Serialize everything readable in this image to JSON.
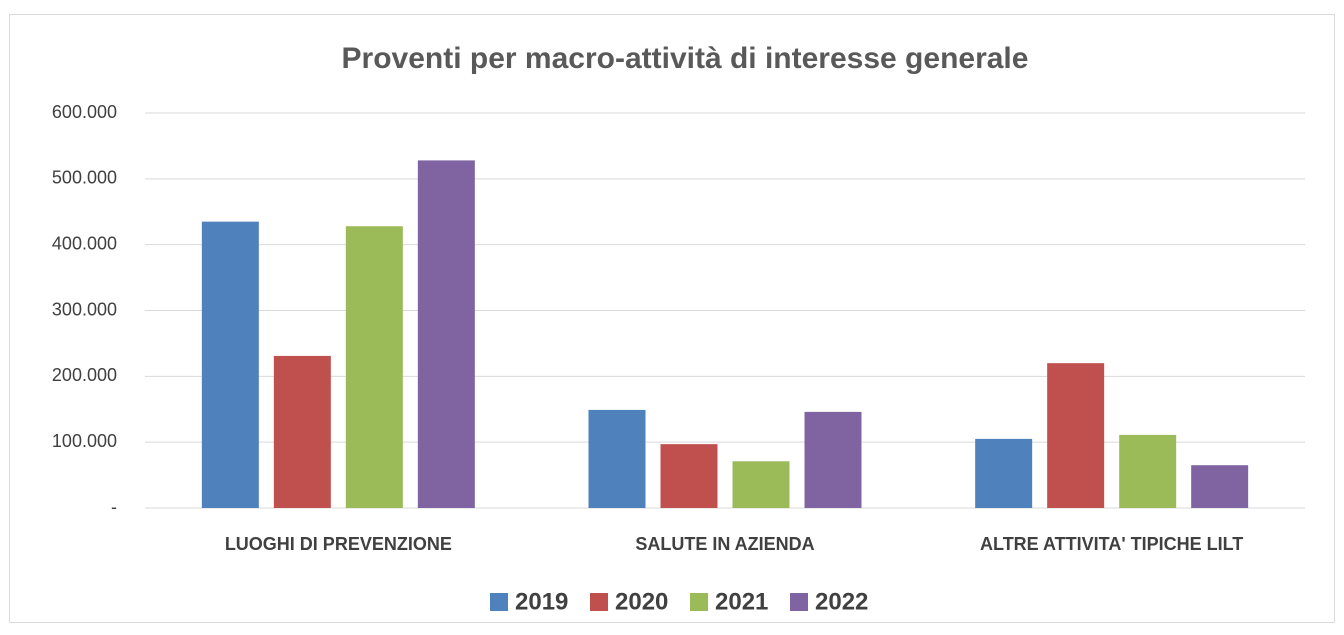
{
  "chart_data": {
    "type": "bar",
    "title": "Proventi per macro-attività di interesse generale",
    "categories": [
      "LUOGHI DI PREVENZIONE",
      "SALUTE IN AZIENDA",
      "ALTRE ATTIVITA' TIPICHE LILT"
    ],
    "series": [
      {
        "name": "2019",
        "color": "#4f81bd",
        "values": [
          435000,
          149000,
          105000
        ]
      },
      {
        "name": "2020",
        "color": "#c0504d",
        "values": [
          231000,
          97000,
          220000
        ]
      },
      {
        "name": "2021",
        "color": "#9bbb59",
        "values": [
          428000,
          71000,
          111000
        ]
      },
      {
        "name": "2022",
        "color": "#8064a2",
        "values": [
          528000,
          146000,
          65000
        ]
      }
    ],
    "ylim": [
      0,
      600000
    ],
    "yticks": [
      {
        "value": 0,
        "label": "-"
      },
      {
        "value": 100000,
        "label": "100.000"
      },
      {
        "value": 200000,
        "label": "200.000"
      },
      {
        "value": 300000,
        "label": "300.000"
      },
      {
        "value": 400000,
        "label": "400.000"
      },
      {
        "value": 500000,
        "label": "500.000"
      },
      {
        "value": 600000,
        "label": "600.000"
      }
    ],
    "grid": true,
    "legend": "bottom"
  }
}
